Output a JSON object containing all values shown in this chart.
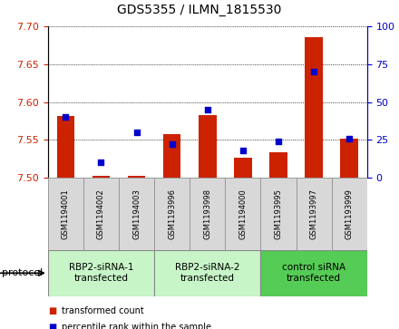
{
  "title": "GDS5355 / ILMN_1815530",
  "samples": [
    "GSM1194001",
    "GSM1194002",
    "GSM1194003",
    "GSM1193996",
    "GSM1193998",
    "GSM1194000",
    "GSM1193995",
    "GSM1193997",
    "GSM1193999"
  ],
  "red_values": [
    7.582,
    7.503,
    7.502,
    7.558,
    7.583,
    7.526,
    7.533,
    7.686,
    7.552
  ],
  "blue_values": [
    40,
    10,
    30,
    22,
    45,
    18,
    24,
    70,
    26
  ],
  "ylim_left": [
    7.5,
    7.7
  ],
  "ylim_right": [
    0,
    100
  ],
  "yticks_left": [
    7.5,
    7.55,
    7.6,
    7.65,
    7.7
  ],
  "yticks_right": [
    0,
    25,
    50,
    75,
    100
  ],
  "groups": [
    {
      "label": "RBP2-siRNA-1\ntransfected",
      "start": 0,
      "end": 3
    },
    {
      "label": "RBP2-siRNA-2\ntransfected",
      "start": 3,
      "end": 6
    },
    {
      "label": "control siRNA\ntransfected",
      "start": 6,
      "end": 9
    }
  ],
  "group_colors": [
    "#c8f5c8",
    "#c8f5c8",
    "#55cc55"
  ],
  "sample_box_color": "#d8d8d8",
  "bar_color": "#CC2200",
  "blue_marker_color": "#0000CC",
  "plot_bg_color": "#ffffff",
  "bar_width": 0.5,
  "base_value": 7.5,
  "legend_items": [
    {
      "color": "#CC2200",
      "label": "transformed count"
    },
    {
      "color": "#0000CC",
      "label": "percentile rank within the sample"
    }
  ]
}
